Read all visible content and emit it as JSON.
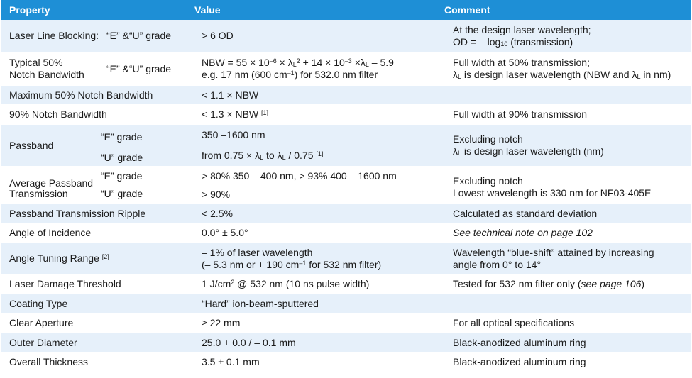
{
  "header": {
    "property": "Property",
    "value": "Value",
    "comment": "Comment"
  },
  "rows": [
    {
      "property": "Laser Line Blocking:",
      "grade": "“E” &“U” grade",
      "value": "> 6 OD",
      "comment_1": "At the design laser wavelength;",
      "comment_2a": "OD = – log",
      "comment_2sub": "10",
      "comment_2b": " (transmission)"
    },
    {
      "property_1": "Typical 50%",
      "property_2": "Notch Bandwidth",
      "grade": "“E” &“U” grade",
      "value_1": "NBW = 55 × 10",
      "value_1sup": "–6",
      "value_1b": " × λ",
      "value_1sub": "L",
      "value_1sup2": "2",
      "value_1c": " + 14 × 10",
      "value_1sup3": "–3",
      "value_1d": " ×λ",
      "value_1sub2": "L",
      "value_1e": " – 5.9",
      "value_2": "e.g. 17 nm (600 cm",
      "value_2sup": "–1",
      "value_2b": ") for 532.0 nm filter",
      "comment_1": "Full width at 50% transmission;",
      "comment_2a": "λ",
      "comment_2sub": "L",
      "comment_2b": " is design laser wavelength (NBW and λ",
      "comment_2sub2": "L",
      "comment_2c": " in nm)"
    },
    {
      "property": "Maximum 50% Notch Bandwidth",
      "value": "< 1.1 × NBW",
      "comment": ""
    },
    {
      "property": "90% Notch Bandwidth",
      "value": "< 1.3 × NBW",
      "value_sup": "[1]",
      "comment": "Full width at 90% transmission"
    },
    {
      "property": "Passband",
      "grade_e": "“E” grade",
      "grade_u": "“U” grade",
      "value_e": "350 –1600 nm",
      "value_u_a": "from 0.75 × λ",
      "value_u_sub": "L",
      "value_u_b": " to λ",
      "value_u_sub2": "L",
      "value_u_c": " / 0.75 ",
      "value_u_sup": "[1]",
      "comment_1": "Excluding notch",
      "comment_2a": "λ",
      "comment_2sub": "L",
      "comment_2b": " is design laser wavelength (nm)"
    },
    {
      "property_1": "Average Passband",
      "property_2": "Transmission",
      "grade_e": "“E” grade",
      "grade_u": "“U” grade",
      "value_e": "> 80% 350 – 400 nm,  > 93% 400 – 1600 nm",
      "value_u": "> 90%",
      "comment_1": "Excluding notch",
      "comment_2": "Lowest wavelength is 330 nm for NF03-405E"
    },
    {
      "property": "Passband Transmission Ripple",
      "value": "< 2.5%",
      "comment": "Calculated as standard deviation"
    },
    {
      "property": "Angle of Incidence",
      "value": "0.0° ± 5.0°",
      "comment": "See technical note on page 102"
    },
    {
      "property": "Angle Tuning Range",
      "property_sup": "[2]",
      "value_1": "– 1% of laser wavelength",
      "value_2": "(– 5.3 nm or + 190 cm",
      "value_2sup": "–1",
      "value_2b": " for 532 nm filter)",
      "comment_1": "Wavelength “blue-shift” attained by increasing",
      "comment_2": "angle from 0° to 14°"
    },
    {
      "property": "Laser Damage Threshold",
      "value_a": "1 J/cm",
      "value_sup": "2",
      "value_b": " @ 532 nm (10 ns pulse width)",
      "comment_a": "Tested for 532 nm filter only  (",
      "comment_it": "see page 106",
      "comment_b": ")"
    },
    {
      "property": "Coating Type",
      "value": "“Hard” ion-beam-sputtered",
      "comment": ""
    },
    {
      "property": "Clear Aperture",
      "value": "≥ 22 mm",
      "comment": "For all optical specifications"
    },
    {
      "property": "Outer Diameter",
      "value": "25.0 + 0.0 / – 0.1 mm",
      "comment": "Black-anodized aluminum ring"
    },
    {
      "property": "Overall Thickness",
      "value": "3.5 ± 0.1 mm",
      "comment": "Black-anodized aluminum ring"
    }
  ],
  "colors": {
    "header_bg": "#1e8fd6",
    "alt_row_bg": "#e6f0fa"
  }
}
